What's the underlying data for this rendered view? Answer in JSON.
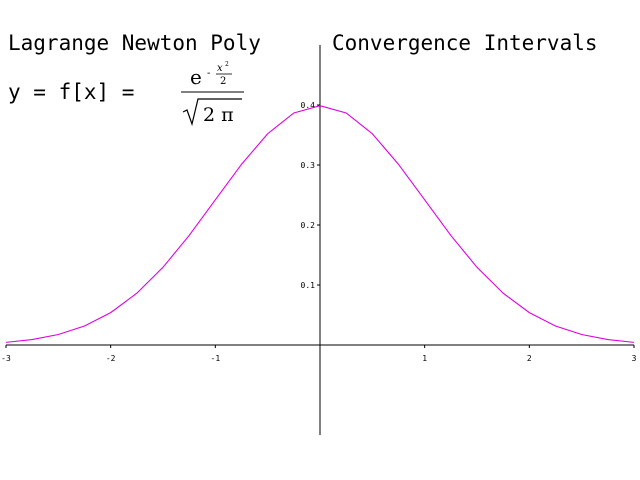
{
  "header": {
    "left_title": "Lagrange Newton Poly",
    "right_title": "Convergence Intervals"
  },
  "equation": {
    "lhs": "y = f[x] =",
    "base": "e",
    "exp_sign": "-",
    "exp_numerator_var": "x",
    "exp_numerator_power": "2",
    "exp_denominator": "2",
    "radicand": "2 π"
  },
  "chart_data": {
    "type": "line",
    "function": "exp(-x^2/2)/sqrt(2*pi)",
    "xlim": [
      -3,
      3
    ],
    "ylim": [
      -0.15,
      0.5
    ],
    "x_ticks": [
      -3,
      -2,
      -1,
      1,
      2,
      3
    ],
    "y_ticks": [
      0.1,
      0.2,
      0.3,
      0.4
    ],
    "grid": false,
    "legend": "none",
    "series": [
      {
        "color": "#e000e0",
        "x": [
          -3.0,
          -2.75,
          -2.5,
          -2.25,
          -2.0,
          -1.75,
          -1.5,
          -1.25,
          -1.0,
          -0.75,
          -0.5,
          -0.25,
          0.0,
          0.25,
          0.5,
          0.75,
          1.0,
          1.25,
          1.5,
          1.75,
          2.0,
          2.25,
          2.5,
          2.75,
          3.0
        ],
        "y": [
          0.0044,
          0.0091,
          0.0175,
          0.0317,
          0.054,
          0.0863,
          0.1295,
          0.1826,
          0.242,
          0.3011,
          0.3521,
          0.3867,
          0.3989,
          0.3867,
          0.3521,
          0.3011,
          0.242,
          0.1826,
          0.1295,
          0.0863,
          0.054,
          0.0317,
          0.0175,
          0.0091,
          0.0044
        ]
      }
    ]
  }
}
